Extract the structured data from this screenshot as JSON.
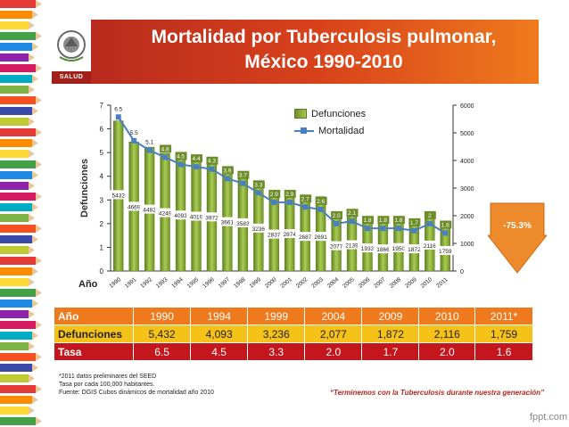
{
  "header": {
    "title_line1": "Mortalidad por Tuberculosis pulmonar,",
    "title_line2": "México 1990-2010",
    "badge": "SALUD"
  },
  "chart_data": {
    "type": "bar",
    "categories": [
      "1990",
      "1991",
      "1992",
      "1993",
      "1994",
      "1995",
      "1996",
      "1997",
      "1998",
      "1999",
      "2000",
      "2001",
      "2002",
      "2003",
      "2004",
      "2005",
      "2006",
      "2007",
      "2008",
      "2009",
      "2010",
      "2011"
    ],
    "series": [
      {
        "name": "Defunciones",
        "axis": "right",
        "values": [
          5432,
          4669,
          4482,
          4249,
          4093,
          4019,
          3972,
          3661,
          3583,
          3236,
          2837,
          2874,
          2687,
          2691,
          2077,
          2139,
          1933,
          1866,
          1950,
          1872,
          2116,
          1759
        ]
      },
      {
        "name": "Mortalidad",
        "axis": "left",
        "type": "line",
        "values": [
          6.5,
          5.5,
          5.1,
          4.8,
          4.5,
          4.4,
          4.3,
          3.9,
          3.7,
          3.3,
          2.9,
          2.9,
          2.7,
          2.6,
          2.0,
          2.1,
          1.8,
          1.8,
          1.8,
          1.7,
          2.0,
          1.6
        ]
      }
    ],
    "bar_labels": {
      "1990": "5432",
      "1991": "4669",
      "1992": "4482",
      "1993": "4249",
      "1994": "4093",
      "1995": "4019",
      "1996": "3972",
      "1997": "3661",
      "1998": "3583",
      "1999": "3236",
      "2000": "2837",
      "2001": "2874",
      "2002": "2687",
      "2003": "2691",
      "2004": "2077",
      "2005": "2139",
      "2006": "1933",
      "2007": "1866",
      "2008": "1950",
      "2009": "1872",
      "2010": "2116",
      "2011": "1759"
    },
    "line_labels": [
      "6.5",
      "5.5",
      "5.1",
      "4.8",
      "4.5",
      "4.4",
      "4.3",
      "3.9",
      "3.7",
      "3.3",
      "2.9",
      "2.9",
      "2.7",
      "2.6",
      "2.0",
      "2.1",
      "1.8",
      "1.8",
      "1.8",
      "1.7",
      "2",
      "1.6"
    ],
    "ylabel": "Defunciones",
    "xlabel": "Año",
    "y_left_ticks": [
      "0",
      "1",
      "2",
      "3",
      "4",
      "5",
      "6",
      "7"
    ],
    "y_right_ticks": [
      "0",
      "1000",
      "2000",
      "3000",
      "4000",
      "5000",
      "6000"
    ],
    "ylim_left": [
      0,
      7
    ],
    "ylim_right": [
      0,
      6000
    ],
    "legend_position": "top-right",
    "annotation": "-75.3%"
  },
  "table": {
    "header": [
      "Año",
      "1990",
      "1994",
      "1999",
      "2004",
      "2009",
      "2010",
      "2011*"
    ],
    "rows": [
      [
        "Defunciones",
        "5,432",
        "4,093",
        "3,236",
        "2,077",
        "1,872",
        "2,116",
        "1,759"
      ],
      [
        "Tasa",
        "6.5",
        "4.5",
        "3.3",
        "2.0",
        "1.7",
        "2.0",
        "1.6"
      ]
    ]
  },
  "notes": [
    "*2011 datos preliminares del SEED",
    "Tasa por cada 100,000 habitantes.",
    "Fuente: DGIS Cubos dinámicos de mortalidad año 2010"
  ],
  "slogan": "“Terminemos con la Tuberculosis durante nuestra generación”",
  "footer": "fppt.com",
  "colors": {
    "header_red": "#b3261e",
    "header_orange": "#ef7a1d",
    "bar_green": "#7fa63a",
    "line_blue": "#4a7fc1",
    "table_yellow": "#f5c21a",
    "table_red": "#c4171d",
    "arrow_orange": "#ec8a2c"
  }
}
